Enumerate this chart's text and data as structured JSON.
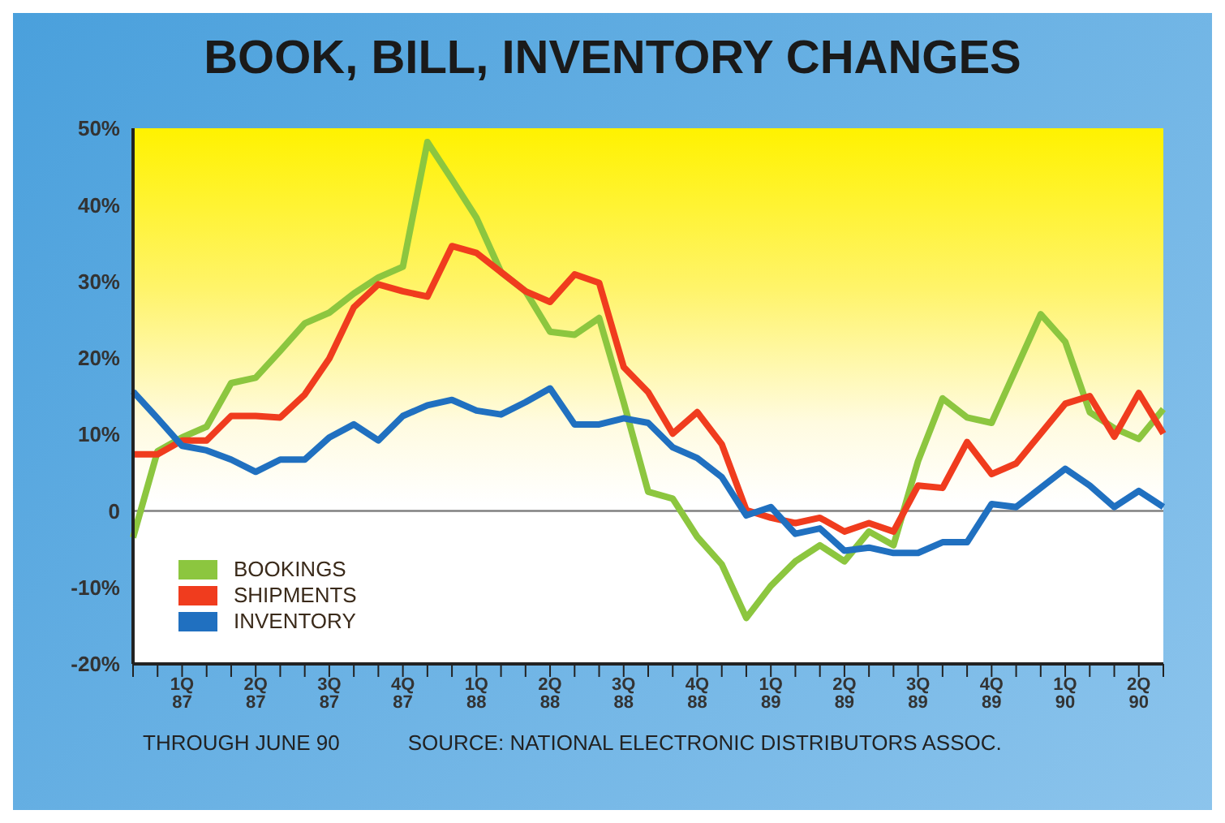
{
  "chart_data": {
    "type": "line",
    "title": "BOOK, BILL, INVENTORY CHANGES",
    "categories": [
      null,
      null,
      "1Q\n87",
      null,
      null,
      "2Q\n87",
      null,
      null,
      "3Q\n87",
      null,
      null,
      "4Q\n87",
      null,
      null,
      "1Q\n88",
      null,
      null,
      "2Q\n88",
      null,
      null,
      "3Q\n88",
      null,
      null,
      "4Q\n88",
      null,
      null,
      "1Q\n89",
      null,
      null,
      "2Q\n89",
      null,
      null,
      "3Q\n89",
      null,
      null,
      "4Q\n89",
      null,
      null,
      "1Q\n90",
      null,
      null,
      "2Q\n90",
      null
    ],
    "series": [
      {
        "name": "BOOKINGS",
        "color": "#8cc63f",
        "values": [
          -3.5,
          7.8,
          9.6,
          11,
          16.7,
          17.4,
          20.9,
          24.5,
          25.9,
          28.4,
          30.5,
          31.9,
          48.2,
          43.3,
          38.3,
          31.2,
          28.7,
          23.4,
          23,
          25.2,
          14.2,
          2.5,
          1.6,
          -3.4,
          -7,
          -14,
          -9.8,
          -6.6,
          -4.5,
          -6.6,
          -2.7,
          -4.5,
          6.5,
          14.7,
          12.2,
          11.5,
          18.6,
          25.7,
          22.1,
          12.9,
          10.8,
          9.4,
          13.3
        ]
      },
      {
        "name": "SHIPMENTS",
        "color": "#f03c1e",
        "values": [
          7.4,
          7.4,
          9.2,
          9.2,
          12.4,
          12.4,
          12.2,
          15.2,
          19.9,
          26.6,
          29.6,
          28.7,
          28,
          34.6,
          33.7,
          31.2,
          28.7,
          27.3,
          30.9,
          29.8,
          18.8,
          15.5,
          10.1,
          12.9,
          8.7,
          0.1,
          -0.9,
          -1.6,
          -0.9,
          -2.7,
          -1.6,
          -2.7,
          3.3,
          3,
          9,
          4.8,
          6.2,
          10.1,
          14,
          15,
          9.7,
          15.4,
          10.1
        ]
      },
      {
        "name": "INVENTORY",
        "color": "#2070c0",
        "values": [
          15.6,
          12.1,
          8.5,
          7.9,
          6.7,
          5.1,
          6.7,
          6.7,
          9.6,
          11.3,
          9.2,
          12.4,
          13.8,
          14.5,
          13.1,
          12.6,
          14.2,
          16,
          11.3,
          11.3,
          12.1,
          11.5,
          8.3,
          6.9,
          4.4,
          -0.6,
          0.5,
          -3,
          -2.3,
          -5.2,
          -4.8,
          -5.5,
          -5.5,
          -4.1,
          -4.1,
          0.9,
          0.5,
          3,
          5.5,
          3.3,
          0.5,
          2.6,
          0.5
        ]
      }
    ],
    "ylim": [
      -20,
      50
    ],
    "yticks": [
      {
        "value": -20,
        "label": "-20%"
      },
      {
        "value": -10,
        "label": "-10%"
      },
      0,
      {
        "value": 10,
        "label": "10%"
      },
      {
        "value": 20,
        "label": "20%"
      },
      {
        "value": 30,
        "label": "30%"
      },
      {
        "value": 40,
        "label": "40%"
      },
      {
        "value": 50,
        "label": "50%"
      }
    ],
    "ref_lines": [
      {
        "axis": "y",
        "value": 0,
        "color": "#808080"
      }
    ],
    "annotations": [
      "THROUGH JUNE 90",
      "SOURCE: NATIONAL ELECTRONIC DISTRIBUTORS ASSOC."
    ],
    "legend": "bottom left",
    "grid": false,
    "marker": "none",
    "line_style": "solid"
  }
}
